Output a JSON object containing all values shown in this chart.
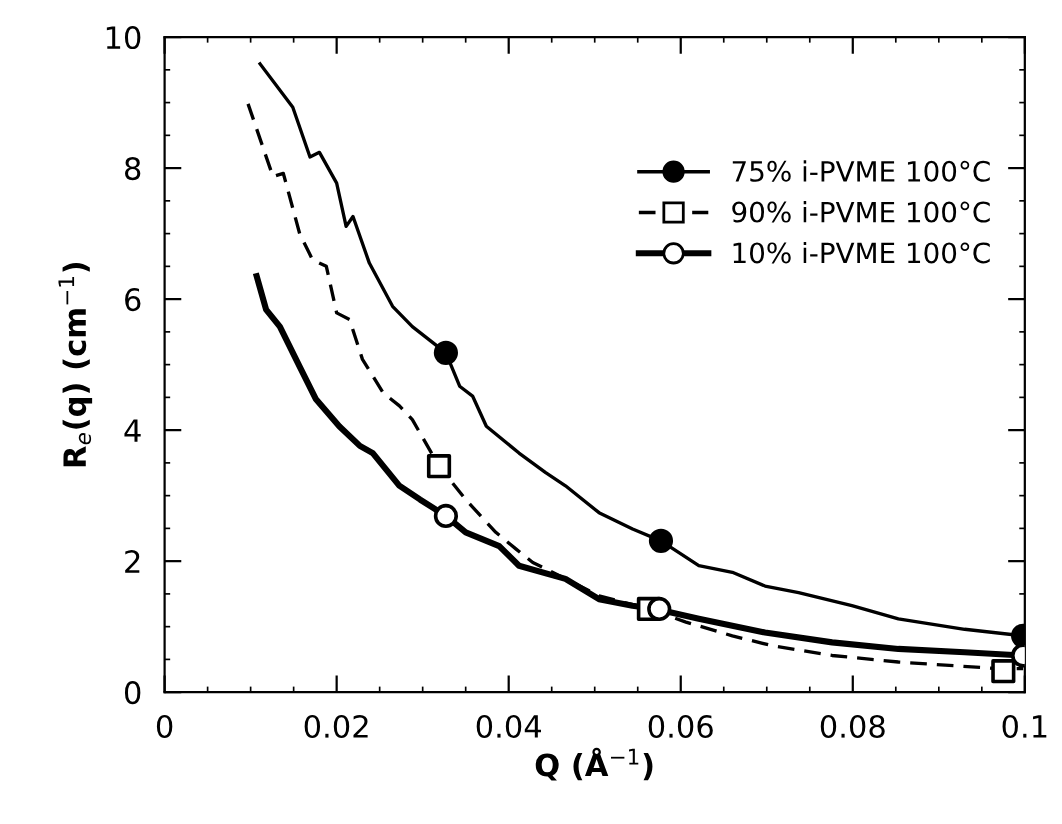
{
  "chart_data": {
    "type": "line",
    "xlabel": "Q (Å$^{−1}$)",
    "ylabel": "R$_{e}$(q) (cm$^{−1}$)",
    "xlim": [
      0,
      0.1
    ],
    "ylim": [
      0,
      10
    ],
    "xticks": [
      0,
      0.02,
      0.04,
      0.06,
      0.08,
      {
        "value": 0.1,
        "label": "0.1"
      }
    ],
    "yticks": [
      0,
      2,
      4,
      6,
      8,
      10
    ],
    "grid": false,
    "legend": "top right",
    "series": [
      {
        "name": "75% i-PVME 100°C",
        "color": "#000000",
        "line_style": "solid",
        "x": [
          0.0111,
          0.0149,
          0.0169,
          0.018,
          0.02,
          0.0211,
          0.0219,
          0.0238,
          0.0265,
          0.0288,
          0.0327,
          0.0343,
          0.0358,
          0.0374,
          0.0412,
          0.0443,
          0.0466,
          0.0505,
          0.0544,
          0.0577,
          0.0621,
          0.066,
          0.0698,
          0.0737,
          0.0799,
          0.0853,
          0.093,
          0.0998
        ],
        "values": [
          9.59,
          8.93,
          8.17,
          8.24,
          7.77,
          7.11,
          7.26,
          6.55,
          5.89,
          5.58,
          5.18,
          4.67,
          4.52,
          4.06,
          3.65,
          3.35,
          3.15,
          2.74,
          2.49,
          2.31,
          1.93,
          1.83,
          1.62,
          1.52,
          1.32,
          1.12,
          0.96,
          0.86
        ]
      },
      {
        "name": "90% i-PVME 100°C",
        "color": "#000000",
        "line_style": "dashed",
        "x": [
          0.0097,
          0.0126,
          0.0138,
          0.0157,
          0.0172,
          0.0188,
          0.02,
          0.0215,
          0.023,
          0.0254,
          0.0273,
          0.0288,
          0.0319,
          0.035,
          0.0385,
          0.0409,
          0.0428,
          0.0466,
          0.0505,
          0.0563,
          0.0606,
          0.066,
          0.0706,
          0.0776,
          0.0853,
          0.0969,
          0.0998
        ],
        "values": [
          8.98,
          7.87,
          7.92,
          7.0,
          6.6,
          6.5,
          5.79,
          5.69,
          5.08,
          4.57,
          4.37,
          4.16,
          3.45,
          2.94,
          2.44,
          2.18,
          1.98,
          1.73,
          1.47,
          1.27,
          1.07,
          0.86,
          0.71,
          0.56,
          0.46,
          0.36,
          0.36
        ]
      },
      {
        "name": "10% i-PVME 100°C",
        "color": "#000000",
        "line_style": "solid",
        "x": [
          0.0107,
          0.0118,
          0.0134,
          0.0157,
          0.0176,
          0.0203,
          0.0227,
          0.0242,
          0.0273,
          0.0297,
          0.0327,
          0.035,
          0.0389,
          0.0412,
          0.0466,
          0.0505,
          0.0544,
          0.0571,
          0.0621,
          0.0698,
          0.0776,
          0.0853,
          0.093,
          0.0998
        ],
        "values": [
          6.35,
          5.84,
          5.58,
          4.97,
          4.47,
          4.06,
          3.76,
          3.65,
          3.15,
          2.94,
          2.69,
          2.44,
          2.23,
          1.93,
          1.73,
          1.42,
          1.32,
          1.27,
          1.12,
          0.91,
          0.76,
          0.66,
          0.61,
          0.56
        ]
      },
      {
        "type": "scatter",
        "color": "#000000",
        "marker": "circle",
        "x": [
          0.0327,
          0.0577,
          0.0998
        ],
        "values": [
          5.18,
          2.31,
          0.86
        ]
      },
      {
        "type": "scatter",
        "color": "#000000",
        "marker": "square",
        "x": [
          0.0319,
          0.0563,
          0.0975
        ],
        "values": [
          3.45,
          1.27,
          0.32
        ]
      },
      {
        "type": "scatter",
        "color": "#000000",
        "marker": "circle",
        "x": [
          0.0327,
          0.0575,
          0.0998
        ],
        "values": [
          2.69,
          1.27,
          0.56
        ]
      }
    ]
  }
}
